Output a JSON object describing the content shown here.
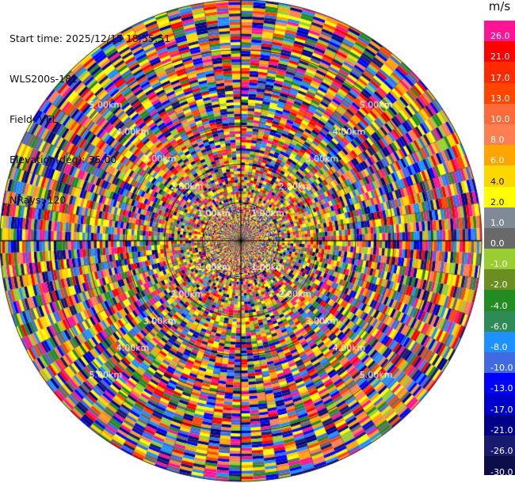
{
  "info": {
    "start_time": "Start time: 2025/12/15 18:55:51",
    "site": "WLS200s-181",
    "field": "Field: VEL",
    "elevation": "Elevation(deg): 35.00",
    "nrays": "NRays: 120"
  },
  "colorbar": {
    "unit": "m/s",
    "bottom_label": "-30.0",
    "steps": [
      {
        "label": "26.0",
        "color": "#ff1493",
        "label_color": "#ffffff"
      },
      {
        "label": "21.0",
        "color": "#ff0000",
        "label_color": "#ffffff"
      },
      {
        "label": "17.0",
        "color": "#ff2a00",
        "label_color": "#ffffff"
      },
      {
        "label": "13.0",
        "color": "#ff4500",
        "label_color": "#ffffff"
      },
      {
        "label": "10.0",
        "color": "#ff6a3a",
        "label_color": "#ffffff"
      },
      {
        "label": "8.0",
        "color": "#ff7f50",
        "label_color": "#ffffff"
      },
      {
        "label": "6.0",
        "color": "#ffa500",
        "label_color": "#ffffff"
      },
      {
        "label": "4.0",
        "color": "#ffd700",
        "label_color": "#111111"
      },
      {
        "label": "2.0",
        "color": "#ffff00",
        "label_color": "#111111"
      },
      {
        "label": "1.0",
        "color": "#808a96",
        "label_color": "#ffffff"
      },
      {
        "label": "0.0",
        "color": "#696969",
        "label_color": "#ffffff"
      },
      {
        "label": "-1.0",
        "color": "#9acd32",
        "label_color": "#ffffff"
      },
      {
        "label": "-2.0",
        "color": "#6b8e23",
        "label_color": "#ffffff"
      },
      {
        "label": "-4.0",
        "color": "#228b22",
        "label_color": "#ffffff"
      },
      {
        "label": "-6.0",
        "color": "#2e8b57",
        "label_color": "#ffffff"
      },
      {
        "label": "-8.0",
        "color": "#1e90ff",
        "label_color": "#ffffff"
      },
      {
        "label": "-10.0",
        "color": "#4169e1",
        "label_color": "#ffffff"
      },
      {
        "label": "-13.0",
        "color": "#0000ff",
        "label_color": "#ffffff"
      },
      {
        "label": "-17.0",
        "color": "#0000cd",
        "label_color": "#ffffff"
      },
      {
        "label": "-21.0",
        "color": "#00008b",
        "label_color": "#ffffff"
      },
      {
        "label": "-26.0",
        "color": "#191970",
        "label_color": "#ffffff"
      }
    ]
  },
  "chart_data": {
    "type": "heatmap",
    "projection": "polar-ppi",
    "field": "VEL",
    "units": "m/s",
    "nrays": 120,
    "range_rings_km": [
      1.0,
      2.0,
      3.0,
      4.0,
      5.0
    ],
    "ring_labels": [
      "1.00km",
      "2.00km",
      "3.00km",
      "4.00km",
      "5.00km"
    ],
    "max_range_km": 6.3,
    "range_gate_km": 0.075,
    "gate_ranges_km": [
      [
        0.0,
        1.0,
        0.03
      ],
      [
        1.0,
        6.3,
        0.075
      ]
    ],
    "sector_colors": {
      "inner": [
        "#ffff00",
        "#ffd700",
        "#9acd32",
        "#6b8e23",
        "#808a96",
        "#696969",
        "#ffa500",
        "#00008b",
        "#ff1493",
        "#ff0000"
      ],
      "outer": [
        "#ff1493",
        "#ff0000",
        "#0000ff",
        "#00008b",
        "#191970",
        "#4169e1",
        "#ffff00",
        "#ffa500",
        "#ffd700",
        "#ff4500",
        "#1e90ff",
        "#696969",
        "#9acd32",
        "#228b22",
        "#ff7f50"
      ]
    }
  }
}
